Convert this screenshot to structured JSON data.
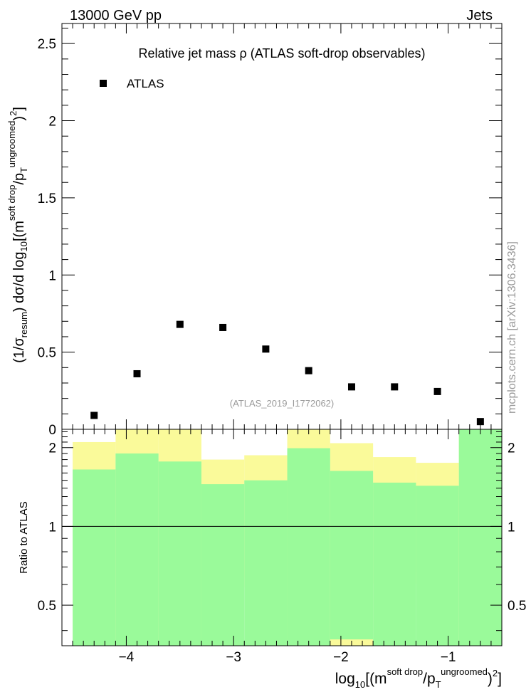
{
  "header": {
    "left": "13000 GeV pp",
    "right": "Jets"
  },
  "colors": {
    "green_band": "#9afa9a",
    "yellow_band": "#fafa9a",
    "marker": "#000000",
    "watermark": "#9a9a9a"
  },
  "chart_data": [
    {
      "type": "scatter",
      "title": "Relative jet mass  ρ (ATLAS soft-drop observables)",
      "legend": {
        "entry": "ATLAS",
        "position": "top-left"
      },
      "ylabel": "(1/σ_resum) dσ/d log10[(m^{soft drop}/pT^{ungroomed})2]",
      "ylim": [
        0,
        2.63
      ],
      "xlim": [
        -4.6,
        -0.5
      ],
      "yticks": [
        {
          "v": 0,
          "label": "0"
        },
        {
          "v": 0.5,
          "label": "0.5"
        },
        {
          "v": 1,
          "label": "1"
        },
        {
          "v": 1.5,
          "label": "1.5"
        },
        {
          "v": 2,
          "label": "2"
        },
        {
          "v": 2.5,
          "label": "2.5"
        }
      ],
      "series": [
        {
          "name": "ATLAS",
          "points": [
            {
              "x": -4.3,
              "y": 0.09
            },
            {
              "x": -3.9,
              "y": 0.36
            },
            {
              "x": -3.5,
              "y": 0.68
            },
            {
              "x": -3.1,
              "y": 0.66
            },
            {
              "x": -2.7,
              "y": 0.52
            },
            {
              "x": -2.3,
              "y": 0.38
            },
            {
              "x": -1.9,
              "y": 0.275
            },
            {
              "x": -1.5,
              "y": 0.275
            },
            {
              "x": -1.1,
              "y": 0.245
            },
            {
              "x": -0.7,
              "y": 0.05
            }
          ]
        }
      ],
      "annotation": "(ATLAS_2019_I1772062)",
      "watermark": "mcplots.cern.ch [arXiv:1306.3436]"
    },
    {
      "type": "area",
      "ylabel": "Ratio to ATLAS",
      "xlabel": "log10[(m^{soft drop}/pT^{ungroomed})2]",
      "log_y": true,
      "ylim": [
        0.35,
        2.35
      ],
      "xlim": [
        -4.6,
        -0.5
      ],
      "reference_line": 1,
      "yticks": [
        {
          "v": 0.5,
          "label": "0.5"
        },
        {
          "v": 1,
          "label": "1"
        },
        {
          "v": 2,
          "label": "2"
        }
      ],
      "xticks": [
        {
          "v": -4,
          "label": "−4"
        },
        {
          "v": -3,
          "label": "−3"
        },
        {
          "v": -2,
          "label": "−2"
        },
        {
          "v": -1,
          "label": "−1"
        }
      ],
      "bands": [
        {
          "x0": -4.5,
          "x1": -4.1,
          "g_lo": 0.35,
          "g_hi": 1.65,
          "y_lo": 0.35,
          "y_hi": 2.1
        },
        {
          "x0": -4.1,
          "x1": -3.7,
          "g_lo": 0.35,
          "g_hi": 1.9,
          "y_lo": 0.35,
          "y_hi": 2.35
        },
        {
          "x0": -3.7,
          "x1": -3.3,
          "g_lo": 0.35,
          "g_hi": 1.77,
          "y_lo": 0.35,
          "y_hi": 2.35
        },
        {
          "x0": -3.3,
          "x1": -2.9,
          "g_lo": 0.35,
          "g_hi": 1.45,
          "y_lo": 0.64,
          "y_hi": 1.8
        },
        {
          "x0": -2.9,
          "x1": -2.5,
          "g_lo": 0.35,
          "g_hi": 1.5,
          "y_lo": 0.585,
          "y_hi": 1.87
        },
        {
          "x0": -2.5,
          "x1": -2.1,
          "g_lo": 0.35,
          "g_hi": 1.99,
          "y_lo": 0.35,
          "y_hi": 2.35
        },
        {
          "x0": -2.1,
          "x1": -1.7,
          "g_lo": 0.37,
          "g_hi": 1.63,
          "y_lo": 0.35,
          "y_hi": 2.08
        },
        {
          "x0": -1.7,
          "x1": -1.3,
          "g_lo": 0.35,
          "g_hi": 1.47,
          "y_lo": 0.605,
          "y_hi": 1.84
        },
        {
          "x0": -1.3,
          "x1": -0.9,
          "g_lo": 0.35,
          "g_hi": 1.43,
          "y_lo": 0.67,
          "y_hi": 1.75
        },
        {
          "x0": -0.9,
          "x1": -0.5,
          "g_lo": 0.35,
          "g_hi": 2.35,
          "y_lo": 0.35,
          "y_hi": 2.35
        }
      ]
    }
  ]
}
